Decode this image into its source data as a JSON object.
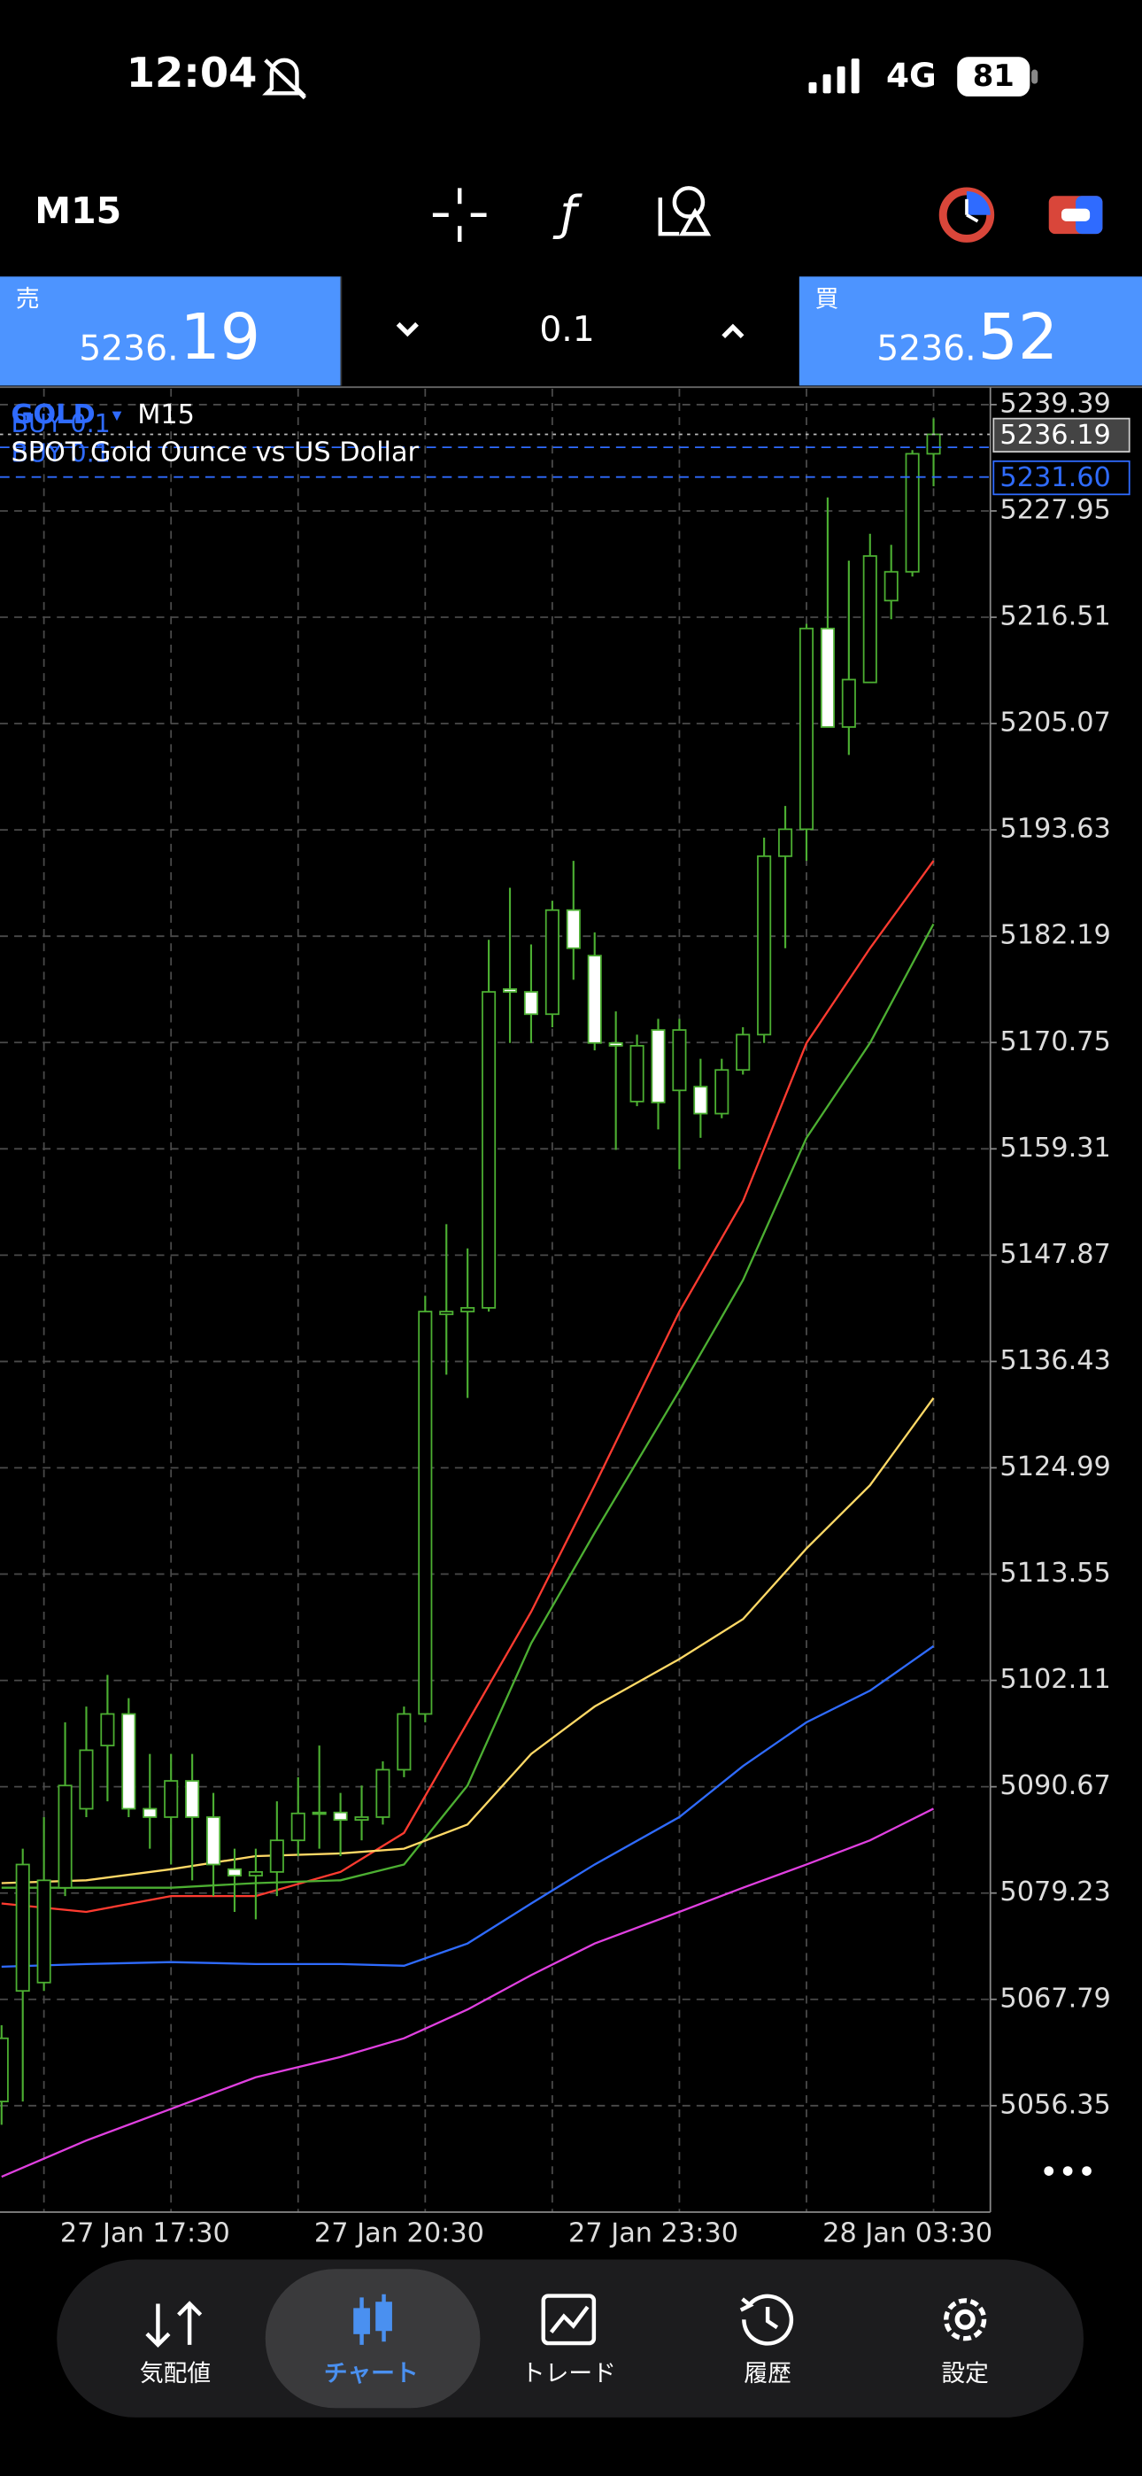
{
  "status_bar": {
    "time": "12:04",
    "network": "4G",
    "battery": "81"
  },
  "toolbar": {
    "timeframe": "M15"
  },
  "trade_panel": {
    "sell_label": "売",
    "sell_price": "5236.",
    "sell_pips": "19",
    "volume": "0.1",
    "buy_label": "買",
    "buy_price": "5236.",
    "buy_pips": "52"
  },
  "chart_data": {
    "type": "candlestick",
    "symbol": "GOLD",
    "timeframe": "M15",
    "description": "SPOT Gold Ounce vs US Dollar",
    "categories": [
      null,
      null,
      "27 Jan 17:30",
      null,
      null,
      null,
      null,
      null,
      null,
      null,
      null,
      null,
      null,
      null,
      "27 Jan 20:30",
      null,
      null,
      null,
      null,
      null,
      null,
      null,
      null,
      null,
      null,
      null,
      "27 Jan 23:30",
      null,
      null,
      null,
      null,
      null,
      null,
      null,
      null,
      null,
      null,
      null,
      "28 Jan 03:30",
      null,
      null,
      null,
      null,
      null,
      null
    ],
    "open": [
      5056.8,
      5068.7,
      5069.6,
      5079.8,
      5088.3,
      5095.1,
      5098.5,
      5088.3,
      5087.4,
      5091.3,
      5087.4,
      5081.8,
      5081.1,
      5081.5,
      5084.9,
      5087.8,
      5087.9,
      5087.1,
      5087.4,
      5092.5,
      5098.5,
      5141.5,
      5141.8,
      5142.2,
      5176.5,
      5176.2,
      5173.8,
      5185.0,
      5180.1,
      5170.7,
      5164.4,
      5172.1,
      5165.6,
      5166.0,
      5163.1,
      5167.8,
      5171.6,
      5190.8,
      5193.7,
      5215.3,
      5204.7,
      5209.5,
      5218.3,
      5221.4,
      5234.1
    ],
    "high": [
      5065.0,
      5084.0,
      5087.4,
      5097.6,
      5099.3,
      5102.7,
      5100.2,
      5094.2,
      5094.2,
      5094.2,
      5090.0,
      5084.0,
      5084.0,
      5089.1,
      5091.7,
      5095.1,
      5090.0,
      5090.8,
      5093.4,
      5099.3,
      5143.5,
      5151.2,
      5148.6,
      5181.8,
      5187.4,
      5181.3,
      5186.0,
      5190.3,
      5182.6,
      5174.1,
      5171.6,
      5173.3,
      5173.3,
      5169.0,
      5169.0,
      5172.4,
      5192.8,
      5196.2,
      5215.8,
      5229.4,
      5222.6,
      5225.5,
      5224.3,
      5234.5,
      5237.9
    ],
    "low": [
      5054.3,
      5056.8,
      5068.7,
      5078.9,
      5087.4,
      5089.1,
      5087.4,
      5084.0,
      5082.3,
      5080.6,
      5078.9,
      5077.2,
      5076.4,
      5078.9,
      5083.2,
      5084.0,
      5083.2,
      5084.9,
      5086.6,
      5091.7,
      5097.6,
      5135.0,
      5132.5,
      5141.8,
      5170.7,
      5170.7,
      5172.4,
      5177.5,
      5169.9,
      5159.2,
      5163.9,
      5161.4,
      5157.1,
      5160.5,
      5162.6,
      5167.3,
      5170.7,
      5180.9,
      5190.3,
      5204.7,
      5201.7,
      5209.5,
      5216.3,
      5220.9,
      5230.6
    ],
    "close": [
      5063.6,
      5082.3,
      5080.6,
      5090.8,
      5094.6,
      5098.5,
      5088.3,
      5087.4,
      5091.3,
      5087.4,
      5082.3,
      5081.1,
      5081.5,
      5084.9,
      5087.8,
      5087.9,
      5087.1,
      5087.4,
      5092.5,
      5098.5,
      5141.8,
      5141.8,
      5142.2,
      5176.2,
      5176.2,
      5173.8,
      5185.0,
      5180.9,
      5170.7,
      5170.4,
      5170.4,
      5164.3,
      5172.1,
      5163.1,
      5167.8,
      5171.6,
      5190.8,
      5193.7,
      5215.3,
      5204.7,
      5209.8,
      5223.1,
      5221.4,
      5234.1,
      5236.19
    ],
    "wick_color": "#4caf32",
    "bull_color": "#000000",
    "bear_color": "#ffffff",
    "moving_averages": [
      {
        "color": "#ff3b30",
        "x": [
          0,
          4,
          8,
          12,
          16,
          19,
          22,
          25,
          28,
          32,
          35,
          38,
          41,
          44
        ],
        "values": [
          5078.1,
          5077.2,
          5078.9,
          5078.9,
          5081.5,
          5085.7,
          5097.6,
          5109.5,
          5123.1,
          5141.8,
          5153.7,
          5170.7,
          5180.9,
          5190.3
        ]
      },
      {
        "color": "#4caf32",
        "x": [
          0,
          4,
          8,
          12,
          16,
          19,
          22,
          25,
          28,
          32,
          35,
          38,
          41,
          44
        ],
        "values": [
          5079.8,
          5079.8,
          5079.8,
          5080.3,
          5080.6,
          5082.3,
          5090.8,
          5106.1,
          5118.0,
          5133.3,
          5145.2,
          5160.5,
          5170.7,
          5183.5
        ]
      },
      {
        "color": "#ffd966",
        "x": [
          0,
          4,
          8,
          12,
          16,
          19,
          22,
          25,
          28,
          32,
          35,
          38,
          41,
          44
        ],
        "values": [
          5080.3,
          5080.6,
          5081.8,
          5083.2,
          5083.5,
          5084.0,
          5086.6,
          5094.2,
          5099.3,
          5104.4,
          5108.7,
          5116.3,
          5123.1,
          5132.5
        ]
      },
      {
        "color": "#2f6bff",
        "x": [
          0,
          4,
          8,
          12,
          16,
          19,
          22,
          25,
          28,
          32,
          35,
          38,
          41,
          44
        ],
        "values": [
          5071.3,
          5071.6,
          5071.8,
          5071.6,
          5071.6,
          5071.4,
          5073.8,
          5078.1,
          5082.3,
          5087.4,
          5092.9,
          5097.6,
          5101.0,
          5105.8
        ]
      },
      {
        "color": "#e040e0",
        "x": [
          0,
          4,
          8,
          12,
          16,
          19,
          22,
          25,
          28,
          32,
          35,
          38,
          41,
          44
        ],
        "values": [
          5048.7,
          5052.6,
          5056.0,
          5059.4,
          5061.6,
          5063.6,
          5066.7,
          5070.4,
          5073.8,
          5077.2,
          5079.8,
          5082.3,
          5084.9,
          5088.3
        ]
      }
    ],
    "bid_line": 5236.19,
    "order_lines": [
      {
        "label": "BUY 0.1",
        "price": 5234.8
      },
      {
        "label": "BUY 0.1",
        "price": {
          "value": 5231.6,
          "label": "5231.60"
        }
      }
    ],
    "ylim": [
      5044.9,
      5241.1
    ],
    "yticks": [
      5239.39,
      5227.95,
      5216.51,
      5205.07,
      5193.63,
      5182.19,
      5170.75,
      5159.31,
      5147.87,
      5136.43,
      5124.99,
      5113.55,
      5102.11,
      5090.67,
      5079.23,
      5067.79,
      5056.35
    ],
    "grid": true
  },
  "bottom_nav": {
    "items": [
      "気配値",
      "チャート",
      "トレード",
      "履歴",
      "設定"
    ],
    "active": 1
  }
}
